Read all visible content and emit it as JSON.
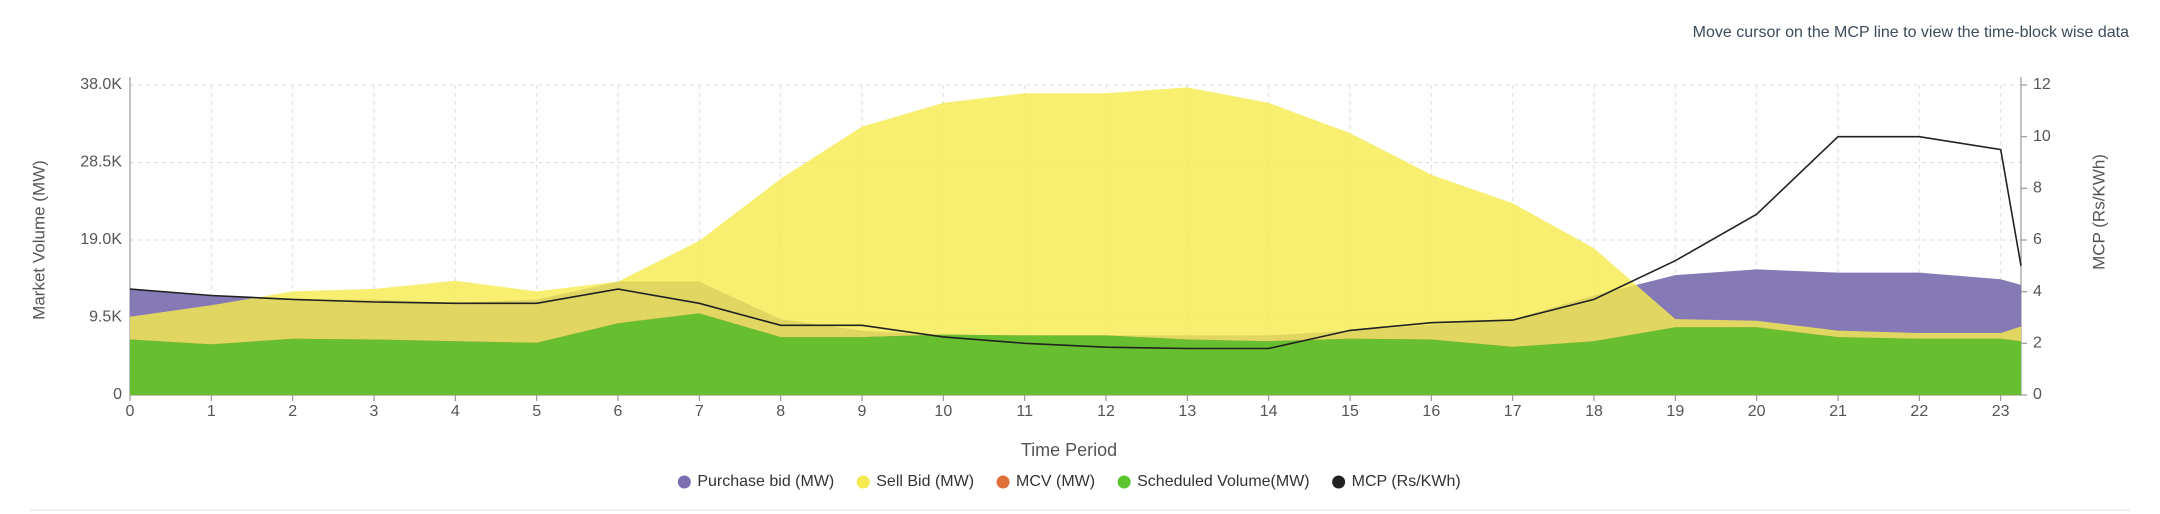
{
  "chart_data": {
    "type": "area",
    "note": "Move cursor on the MCP line to view the time-block wise data",
    "x_label": "Time Period",
    "y_label": "Market Volume (MW)",
    "y2_label": "MCP (Rs/KWh)",
    "x": [
      0,
      1,
      2,
      3,
      4,
      5,
      6,
      7,
      8,
      9,
      10,
      11,
      12,
      13,
      14,
      15,
      16,
      17,
      18,
      19,
      20,
      21,
      22,
      23,
      23.25
    ],
    "xlim": [
      0,
      23.25
    ],
    "xticks": [
      0,
      1,
      2,
      3,
      4,
      5,
      6,
      7,
      8,
      9,
      10,
      11,
      12,
      13,
      14,
      15,
      16,
      17,
      18,
      19,
      20,
      21,
      22,
      23
    ],
    "ylim": [
      0,
      38000
    ],
    "yticks": [
      0,
      {
        "value": 9500,
        "label": "9.5K"
      },
      {
        "value": 19000,
        "label": "19.0K"
      },
      {
        "value": 28500,
        "label": "28.5K"
      },
      {
        "value": 38000,
        "label": "38.0K"
      }
    ],
    "y2lim": [
      0,
      12
    ],
    "y2ticks": [
      0,
      2,
      4,
      6,
      8,
      10,
      12
    ],
    "grid": true,
    "legend": "bottom",
    "series": [
      {
        "name": "Purchase bid (MW)",
        "color": "#7b6fb0",
        "values": [
          13000,
          12200,
          11700,
          11700,
          11300,
          11700,
          13900,
          13900,
          9300,
          7900,
          7300,
          7300,
          7300,
          7300,
          7300,
          7900,
          8600,
          9300,
          12200,
          14700,
          15400,
          15000,
          15000,
          14200,
          13500
        ]
      },
      {
        "name": "Sell Bid (MW)",
        "color": "#f7ea50",
        "values": [
          9600,
          11000,
          12700,
          13000,
          14000,
          12700,
          13900,
          18900,
          26500,
          32900,
          35800,
          37000,
          37000,
          37700,
          35800,
          32100,
          27000,
          23500,
          18000,
          9300,
          9100,
          7900,
          7600,
          7600,
          8400
        ]
      },
      {
        "name": "MCV (MW)",
        "color": "#e0703a",
        "values": [
          6800,
          6200,
          6900,
          6800,
          6600,
          6400,
          8800,
          10000,
          7100,
          7100,
          7400,
          7300,
          7300,
          6800,
          6600,
          6900,
          6800,
          5900,
          6600,
          8300,
          8300,
          7100,
          6900,
          6900,
          6600
        ]
      },
      {
        "name": "Scheduled Volume(MW)",
        "color": "#5cc52e",
        "values": [
          6800,
          6200,
          6900,
          6800,
          6600,
          6400,
          8800,
          10000,
          7100,
          7100,
          7400,
          7300,
          7300,
          6800,
          6600,
          6900,
          6800,
          5900,
          6600,
          8300,
          8300,
          7100,
          6900,
          6900,
          6600
        ]
      },
      {
        "name": "MCP (Rs/KWh)",
        "color": "#222222",
        "axis": "y2",
        "values": [
          4.1,
          3.85,
          3.7,
          3.6,
          3.55,
          3.55,
          4.1,
          3.55,
          2.7,
          2.7,
          2.25,
          2.0,
          1.85,
          1.8,
          1.8,
          2.5,
          2.8,
          2.9,
          3.7,
          5.2,
          7.0,
          10,
          10,
          9.5,
          5
        ]
      }
    ]
  }
}
